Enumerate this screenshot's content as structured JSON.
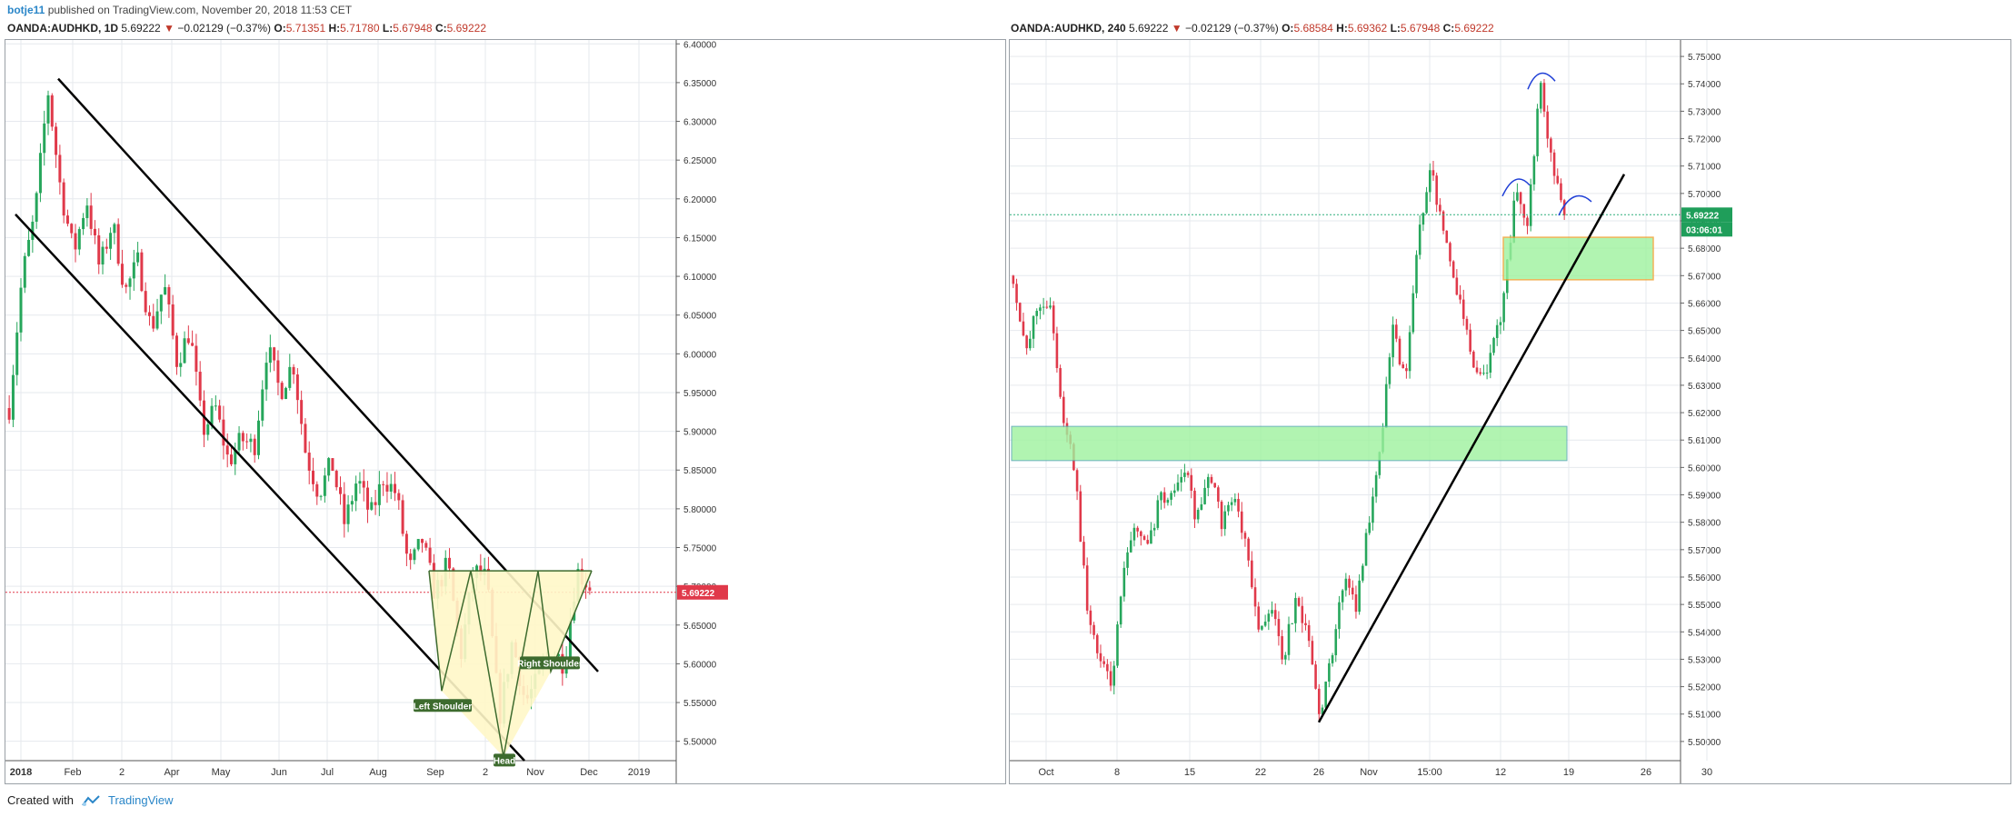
{
  "header": {
    "user": "botje11",
    "published": " published on TradingView.com, November 20, 2018 11:53 CET"
  },
  "left_quote": {
    "symbol": "OANDA:AUDHKD, 1D",
    "last": "5.69222",
    "arrow": "▼",
    "change": "−0.02129 (−0.37%)",
    "o_label": "O:",
    "o": "5.71351",
    "h_label": "H:",
    "h": "5.71780",
    "l_label": "L:",
    "l": "5.67948",
    "c_label": "C:",
    "c": "5.69222"
  },
  "right_quote": {
    "symbol": "OANDA:AUDHKD, 240",
    "last": "5.69222",
    "arrow": "▼",
    "change": "−0.02129 (−0.37%)",
    "o_label": "O:",
    "o": "5.68584",
    "h_label": "H:",
    "h": "5.69362",
    "l_label": "L:",
    "l": "5.67948",
    "c_label": "C:",
    "c": "5.69222"
  },
  "footer": {
    "created": "Created with",
    "brand": "TradingView"
  },
  "colors": {
    "up": "#26a65b",
    "down": "#e0394a",
    "grid": "#e6e9ee",
    "price_tag": "#e0394a",
    "time_tag": "#1f9e5a",
    "zone_fill": "#9ef29e",
    "zone_border": "#4aa0b0",
    "orange": "#f0a030",
    "hs_fill": "#fff7c8",
    "hs_line": "#3d6b2e",
    "blue": "#1f3fd6"
  },
  "chart_data": [
    {
      "type": "candlestick",
      "timeframe": "1D",
      "ylim": [
        5.475,
        6.405
      ],
      "y_ticks": [
        "6.40000",
        "6.35000",
        "6.30000",
        "6.25000",
        "6.20000",
        "6.15000",
        "6.10000",
        "6.05000",
        "6.00000",
        "5.95000",
        "5.90000",
        "5.85000",
        "5.80000",
        "5.75000",
        "5.70000",
        "5.65000",
        "5.60000",
        "5.55000",
        "5.50000"
      ],
      "x_labels": [
        "2018",
        "Feb",
        "2",
        "Apr",
        "May",
        "Jun",
        "Jul",
        "Aug",
        "Sep",
        "2",
        "Nov",
        "Dec",
        "2019"
      ],
      "last_price": "5.69222",
      "annotations": {
        "left_shoulder": "Left Shoulder",
        "head": "Head",
        "right_shoulder": "Right Shoulder"
      },
      "path_values": [
        5.93,
        6.1,
        6.18,
        6.34,
        6.21,
        6.13,
        6.2,
        6.11,
        6.17,
        6.08,
        6.12,
        6.03,
        6.09,
        5.99,
        6.03,
        5.9,
        5.93,
        5.86,
        5.89,
        5.88,
        6.01,
        5.95,
        5.99,
        5.87,
        5.82,
        5.86,
        5.78,
        5.84,
        5.79,
        5.84,
        5.82,
        5.72,
        5.76,
        5.69,
        5.73,
        5.61,
        5.72,
        5.71,
        5.53,
        5.63,
        5.55,
        5.58,
        5.62,
        5.6,
        5.72,
        5.7
      ]
    },
    {
      "type": "candlestick",
      "timeframe": "240",
      "ylim": [
        5.493,
        5.756
      ],
      "y_ticks": [
        "5.75000",
        "5.74000",
        "5.73000",
        "5.72000",
        "5.71000",
        "5.70000",
        "5.69000",
        "5.68000",
        "5.67000",
        "5.66000",
        "5.65000",
        "5.64000",
        "5.63000",
        "5.62000",
        "5.61000",
        "5.60000",
        "5.59000",
        "5.58000",
        "5.57000",
        "5.56000",
        "5.55000",
        "5.54000",
        "5.53000",
        "5.52000",
        "5.51000",
        "5.50000"
      ],
      "x_labels": [
        "Oct",
        "8",
        "15",
        "22",
        "26",
        "Nov",
        "15:00",
        "12",
        "19",
        "26",
        "30"
      ],
      "last_price": "5.69222",
      "countdown": "03:06:01",
      "path_values": [
        5.67,
        5.64,
        5.66,
        5.66,
        5.62,
        5.6,
        5.55,
        5.53,
        5.52,
        5.56,
        5.58,
        5.57,
        5.59,
        5.59,
        5.6,
        5.58,
        5.6,
        5.58,
        5.59,
        5.57,
        5.54,
        5.55,
        5.53,
        5.55,
        5.54,
        5.51,
        5.53,
        5.56,
        5.55,
        5.58,
        5.61,
        5.65,
        5.63,
        5.68,
        5.71,
        5.69,
        5.67,
        5.65,
        5.63,
        5.64,
        5.66,
        5.7,
        5.69,
        5.74,
        5.71,
        5.69
      ]
    }
  ]
}
